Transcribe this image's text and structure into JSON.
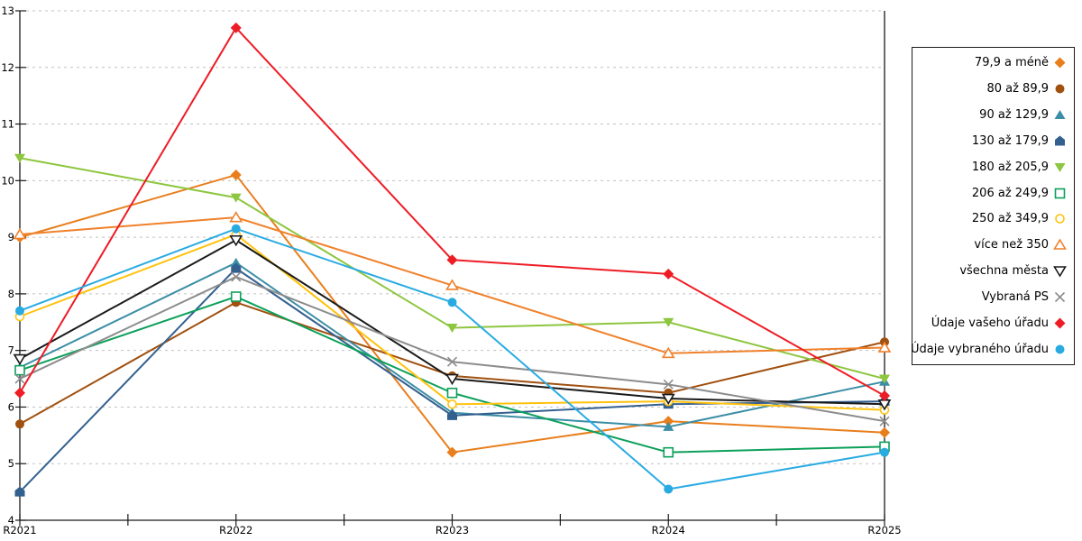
{
  "chart_data": {
    "type": "line",
    "title": "",
    "xlabel": "",
    "ylabel": "",
    "categories": [
      "R2021",
      "R2022",
      "R2023",
      "R2024",
      "R2025"
    ],
    "ylim": [
      4,
      13
    ],
    "ytick_step": 1,
    "grid": "horizontal-dashed",
    "legend_position": "right-boxed",
    "axis_color": "#1a1a1a",
    "grid_color": "#c2c2c2",
    "series": [
      {
        "name": "79,9 a méně",
        "marker": "diamond",
        "fill": "solid",
        "color": "#E87E1C",
        "values": [
          9.0,
          10.1,
          5.2,
          5.75,
          5.55
        ]
      },
      {
        "name": "80 až 89,9",
        "marker": "circle",
        "fill": "solid",
        "color": "#A0500F",
        "values": [
          5.7,
          7.85,
          6.55,
          6.25,
          7.15
        ]
      },
      {
        "name": "90 až 129,9",
        "marker": "triangle-up",
        "fill": "solid",
        "color": "#3B8EA5",
        "values": [
          6.7,
          8.55,
          5.9,
          5.65,
          6.45
        ]
      },
      {
        "name": "130 až 179,9",
        "marker": "pentagon",
        "fill": "solid",
        "color": "#33608F",
        "values": [
          4.5,
          8.45,
          5.85,
          6.05,
          6.1
        ]
      },
      {
        "name": "180 až 205,9",
        "marker": "triangle-down",
        "fill": "solid",
        "color": "#8DC63F",
        "values": [
          10.4,
          9.7,
          7.4,
          7.5,
          6.5
        ]
      },
      {
        "name": "206 až 249,9",
        "marker": "square",
        "fill": "open",
        "color": "#0CA05A",
        "values": [
          6.65,
          7.95,
          6.25,
          5.2,
          5.3
        ]
      },
      {
        "name": "250 až 349,9",
        "marker": "circle",
        "fill": "open",
        "color": "#FFC20E",
        "values": [
          7.6,
          9.05,
          6.05,
          6.1,
          5.95
        ]
      },
      {
        "name": "více než 350",
        "marker": "triangle-up",
        "fill": "open",
        "color": "#F0812B",
        "values": [
          9.05,
          9.35,
          8.15,
          6.95,
          7.05
        ]
      },
      {
        "name": "všechna města",
        "marker": "triangle-down",
        "fill": "open",
        "color": "#1A1A1A",
        "values": [
          6.85,
          8.95,
          6.5,
          6.15,
          6.05
        ]
      },
      {
        "name": "Vybraná PS",
        "marker": "x",
        "fill": "open",
        "color": "#8C8C8C",
        "values": [
          6.5,
          8.3,
          6.8,
          6.4,
          5.75
        ]
      },
      {
        "name": "Údaje vašeho úřadu",
        "marker": "diamond",
        "fill": "solid",
        "color": "#EE1C25",
        "values": [
          6.25,
          12.7,
          8.6,
          8.35,
          6.2
        ]
      },
      {
        "name": "Údaje vybraného úřadu",
        "marker": "circle",
        "fill": "solid",
        "color": "#29ABE2",
        "values": [
          7.7,
          9.15,
          7.85,
          4.55,
          5.2
        ]
      }
    ]
  }
}
